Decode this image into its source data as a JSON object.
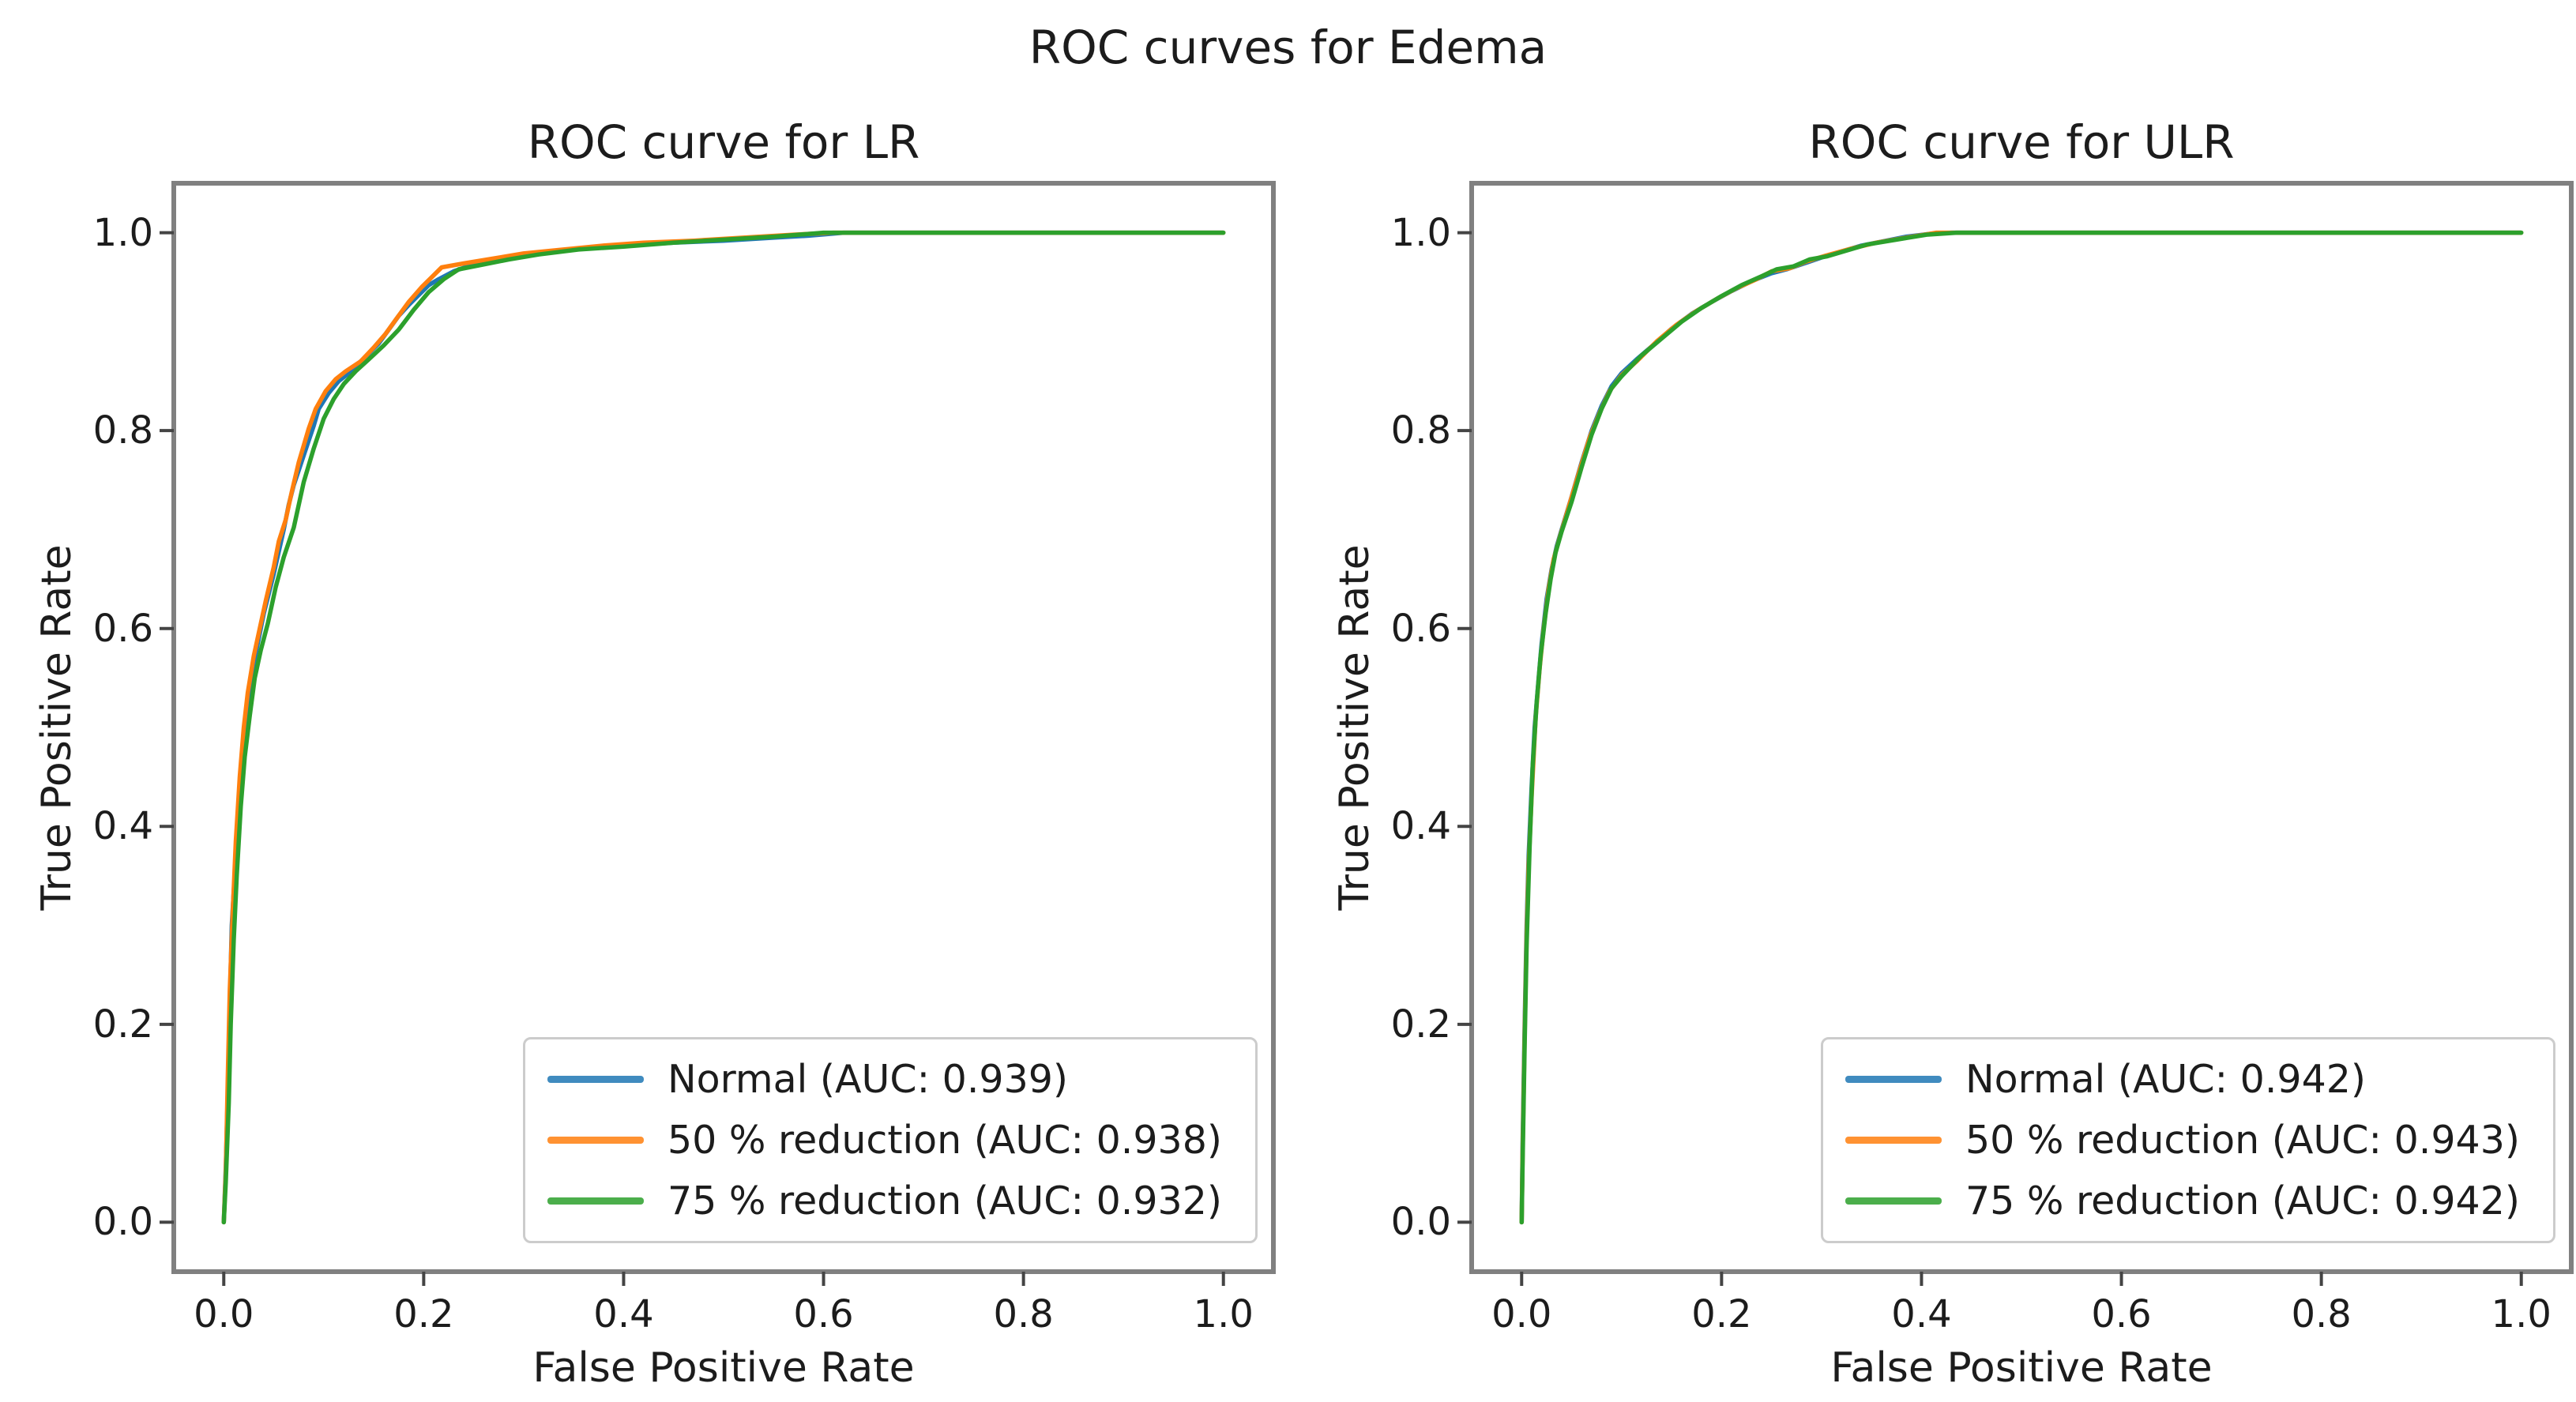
{
  "figure": {
    "title": "ROC curves for Edema",
    "background_color": "#ffffff",
    "text_color": "#1c1c1c",
    "spine_color": "#808080",
    "tick_color": "#444444",
    "legend_border_color": "#cccccc"
  },
  "chart_data": [
    {
      "type": "line",
      "title": "ROC curve for LR",
      "xlabel": "False Positive Rate",
      "ylabel": "True Positive Rate",
      "xlim": [
        -0.05,
        1.05
      ],
      "ylim": [
        -0.05,
        1.05
      ],
      "xticks": [
        "0.0",
        "0.2",
        "0.4",
        "0.6",
        "0.8",
        "1.0"
      ],
      "yticks": [
        "0.0",
        "0.2",
        "0.4",
        "0.6",
        "0.8",
        "1.0"
      ],
      "grid": false,
      "legend_position": "lower right",
      "series": [
        {
          "name": "Normal",
          "label": "Normal (AUC: 0.939)",
          "auc": 0.939,
          "color": "#1f77b4",
          "points": [
            [
              0,
              0
            ],
            [
              0.002,
              0.055
            ],
            [
              0.004,
              0.13
            ],
            [
              0.006,
              0.22
            ],
            [
              0.008,
              0.3
            ],
            [
              0.012,
              0.37
            ],
            [
              0.016,
              0.44
            ],
            [
              0.02,
              0.49
            ],
            [
              0.025,
              0.535
            ],
            [
              0.03,
              0.565
            ],
            [
              0.035,
              0.59
            ],
            [
              0.04,
              0.615
            ],
            [
              0.05,
              0.655
            ],
            [
              0.06,
              0.7
            ],
            [
              0.065,
              0.725
            ],
            [
              0.07,
              0.745
            ],
            [
              0.08,
              0.775
            ],
            [
              0.09,
              0.805
            ],
            [
              0.095,
              0.822
            ],
            [
              0.105,
              0.838
            ],
            [
              0.115,
              0.85
            ],
            [
              0.125,
              0.858
            ],
            [
              0.135,
              0.868
            ],
            [
              0.145,
              0.878
            ],
            [
              0.155,
              0.888
            ],
            [
              0.165,
              0.902
            ],
            [
              0.175,
              0.916
            ],
            [
              0.185,
              0.927
            ],
            [
              0.195,
              0.937
            ],
            [
              0.205,
              0.947
            ],
            [
              0.215,
              0.953
            ],
            [
              0.23,
              0.961
            ],
            [
              0.25,
              0.968
            ],
            [
              0.28,
              0.974
            ],
            [
              0.31,
              0.979
            ],
            [
              0.35,
              0.983
            ],
            [
              0.4,
              0.987
            ],
            [
              0.45,
              0.99
            ],
            [
              0.5,
              0.992
            ],
            [
              0.55,
              0.995
            ],
            [
              0.585,
              0.997
            ],
            [
              0.62,
              1.0
            ],
            [
              1.0,
              1.0
            ]
          ]
        },
        {
          "name": "50 % reduction",
          "label": "50 % reduction (AUC: 0.938)",
          "auc": 0.938,
          "color": "#ff7f0e",
          "points": [
            [
              0,
              0
            ],
            [
              0.002,
              0.05
            ],
            [
              0.004,
              0.145
            ],
            [
              0.006,
              0.235
            ],
            [
              0.009,
              0.315
            ],
            [
              0.012,
              0.385
            ],
            [
              0.016,
              0.45
            ],
            [
              0.02,
              0.5
            ],
            [
              0.024,
              0.535
            ],
            [
              0.03,
              0.572
            ],
            [
              0.036,
              0.6
            ],
            [
              0.042,
              0.628
            ],
            [
              0.05,
              0.662
            ],
            [
              0.055,
              0.688
            ],
            [
              0.062,
              0.71
            ],
            [
              0.068,
              0.738
            ],
            [
              0.075,
              0.768
            ],
            [
              0.085,
              0.802
            ],
            [
              0.092,
              0.822
            ],
            [
              0.102,
              0.84
            ],
            [
              0.112,
              0.852
            ],
            [
              0.122,
              0.86
            ],
            [
              0.137,
              0.87
            ],
            [
              0.15,
              0.884
            ],
            [
              0.162,
              0.898
            ],
            [
              0.172,
              0.912
            ],
            [
              0.185,
              0.93
            ],
            [
              0.198,
              0.945
            ],
            [
              0.208,
              0.955
            ],
            [
              0.218,
              0.965
            ],
            [
              0.24,
              0.969
            ],
            [
              0.27,
              0.974
            ],
            [
              0.3,
              0.979
            ],
            [
              0.34,
              0.983
            ],
            [
              0.38,
              0.987
            ],
            [
              0.42,
              0.99
            ],
            [
              0.47,
              0.992
            ],
            [
              0.52,
              0.995
            ],
            [
              0.57,
              0.998
            ],
            [
              0.61,
              1.0
            ],
            [
              1.0,
              1.0
            ]
          ]
        },
        {
          "name": "75 % reduction",
          "label": "75 % reduction (AUC: 0.932)",
          "auc": 0.932,
          "color": "#2ca02c",
          "points": [
            [
              0,
              0
            ],
            [
              0.002,
              0.04
            ],
            [
              0.005,
              0.12
            ],
            [
              0.007,
              0.2
            ],
            [
              0.01,
              0.285
            ],
            [
              0.013,
              0.35
            ],
            [
              0.017,
              0.42
            ],
            [
              0.021,
              0.47
            ],
            [
              0.026,
              0.512
            ],
            [
              0.031,
              0.55
            ],
            [
              0.037,
              0.578
            ],
            [
              0.044,
              0.605
            ],
            [
              0.052,
              0.642
            ],
            [
              0.06,
              0.672
            ],
            [
              0.07,
              0.702
            ],
            [
              0.08,
              0.748
            ],
            [
              0.09,
              0.782
            ],
            [
              0.1,
              0.812
            ],
            [
              0.11,
              0.832
            ],
            [
              0.12,
              0.847
            ],
            [
              0.132,
              0.86
            ],
            [
              0.145,
              0.872
            ],
            [
              0.16,
              0.886
            ],
            [
              0.175,
              0.902
            ],
            [
              0.19,
              0.922
            ],
            [
              0.205,
              0.94
            ],
            [
              0.22,
              0.953
            ],
            [
              0.235,
              0.963
            ],
            [
              0.255,
              0.967
            ],
            [
              0.285,
              0.973
            ],
            [
              0.315,
              0.978
            ],
            [
              0.355,
              0.983
            ],
            [
              0.4,
              0.986
            ],
            [
              0.45,
              0.99
            ],
            [
              0.5,
              0.993
            ],
            [
              0.55,
              0.996
            ],
            [
              0.6,
              1.0
            ],
            [
              1.0,
              1.0
            ]
          ]
        }
      ]
    },
    {
      "type": "line",
      "title": "ROC curve for ULR",
      "xlabel": "False Positive Rate",
      "ylabel": "True Positive Rate",
      "xlim": [
        -0.05,
        1.05
      ],
      "ylim": [
        -0.05,
        1.05
      ],
      "xticks": [
        "0.0",
        "0.2",
        "0.4",
        "0.6",
        "0.8",
        "1.0"
      ],
      "yticks": [
        "0.0",
        "0.2",
        "0.4",
        "0.6",
        "0.8",
        "1.0"
      ],
      "grid": false,
      "legend_position": "lower right",
      "series": [
        {
          "name": "Normal",
          "label": "Normal (AUC: 0.942)",
          "auc": 0.942,
          "color": "#1f77b4",
          "points": [
            [
              0,
              0
            ],
            [
              0.001,
              0.08
            ],
            [
              0.003,
              0.2
            ],
            [
              0.005,
              0.3
            ],
            [
              0.007,
              0.37
            ],
            [
              0.01,
              0.44
            ],
            [
              0.013,
              0.5
            ],
            [
              0.017,
              0.55
            ],
            [
              0.02,
              0.585
            ],
            [
              0.025,
              0.63
            ],
            [
              0.03,
              0.66
            ],
            [
              0.035,
              0.683
            ],
            [
              0.04,
              0.7
            ],
            [
              0.05,
              0.733
            ],
            [
              0.06,
              0.768
            ],
            [
              0.07,
              0.8
            ],
            [
              0.08,
              0.825
            ],
            [
              0.09,
              0.845
            ],
            [
              0.1,
              0.858
            ],
            [
              0.115,
              0.872
            ],
            [
              0.13,
              0.885
            ],
            [
              0.15,
              0.903
            ],
            [
              0.17,
              0.918
            ],
            [
              0.19,
              0.93
            ],
            [
              0.21,
              0.941
            ],
            [
              0.23,
              0.951
            ],
            [
              0.25,
              0.959
            ],
            [
              0.265,
              0.963
            ],
            [
              0.28,
              0.968
            ],
            [
              0.3,
              0.975
            ],
            [
              0.32,
              0.981
            ],
            [
              0.34,
              0.987
            ],
            [
              0.36,
              0.991
            ],
            [
              0.385,
              0.996
            ],
            [
              0.41,
              0.999
            ],
            [
              0.43,
              1.0
            ],
            [
              1.0,
              1.0
            ]
          ]
        },
        {
          "name": "50 % reduction",
          "label": "50 % reduction (AUC: 0.943)",
          "auc": 0.943,
          "color": "#ff7f0e",
          "points": [
            [
              0,
              0
            ],
            [
              0.001,
              0.07
            ],
            [
              0.003,
              0.19
            ],
            [
              0.005,
              0.29
            ],
            [
              0.007,
              0.36
            ],
            [
              0.01,
              0.43
            ],
            [
              0.014,
              0.51
            ],
            [
              0.018,
              0.56
            ],
            [
              0.022,
              0.6
            ],
            [
              0.027,
              0.64
            ],
            [
              0.032,
              0.67
            ],
            [
              0.038,
              0.692
            ],
            [
              0.048,
              0.726
            ],
            [
              0.058,
              0.76
            ],
            [
              0.068,
              0.793
            ],
            [
              0.078,
              0.818
            ],
            [
              0.088,
              0.84
            ],
            [
              0.1,
              0.856
            ],
            [
              0.115,
              0.87
            ],
            [
              0.135,
              0.89
            ],
            [
              0.155,
              0.907
            ],
            [
              0.175,
              0.921
            ],
            [
              0.195,
              0.933
            ],
            [
              0.215,
              0.944
            ],
            [
              0.235,
              0.953
            ],
            [
              0.25,
              0.961
            ],
            [
              0.268,
              0.964
            ],
            [
              0.285,
              0.971
            ],
            [
              0.305,
              0.977
            ],
            [
              0.33,
              0.984
            ],
            [
              0.355,
              0.99
            ],
            [
              0.385,
              0.995
            ],
            [
              0.415,
              1.0
            ],
            [
              1.0,
              1.0
            ]
          ]
        },
        {
          "name": "75 % reduction",
          "label": "75 % reduction (AUC: 0.942)",
          "auc": 0.942,
          "color": "#2ca02c",
          "points": [
            [
              0,
              0
            ],
            [
              0.001,
              0.06
            ],
            [
              0.003,
              0.18
            ],
            [
              0.005,
              0.28
            ],
            [
              0.008,
              0.38
            ],
            [
              0.011,
              0.46
            ],
            [
              0.015,
              0.525
            ],
            [
              0.019,
              0.572
            ],
            [
              0.024,
              0.615
            ],
            [
              0.029,
              0.65
            ],
            [
              0.034,
              0.677
            ],
            [
              0.04,
              0.698
            ],
            [
              0.05,
              0.728
            ],
            [
              0.06,
              0.763
            ],
            [
              0.07,
              0.796
            ],
            [
              0.08,
              0.822
            ],
            [
              0.09,
              0.843
            ],
            [
              0.1,
              0.855
            ],
            [
              0.12,
              0.876
            ],
            [
              0.14,
              0.893
            ],
            [
              0.16,
              0.91
            ],
            [
              0.18,
              0.924
            ],
            [
              0.2,
              0.936
            ],
            [
              0.22,
              0.947
            ],
            [
              0.24,
              0.956
            ],
            [
              0.255,
              0.963
            ],
            [
              0.272,
              0.966
            ],
            [
              0.288,
              0.973
            ],
            [
              0.305,
              0.976
            ],
            [
              0.325,
              0.982
            ],
            [
              0.345,
              0.988
            ],
            [
              0.375,
              0.993
            ],
            [
              0.405,
              0.998
            ],
            [
              0.435,
              1.0
            ],
            [
              1.0,
              1.0
            ]
          ]
        }
      ]
    }
  ]
}
